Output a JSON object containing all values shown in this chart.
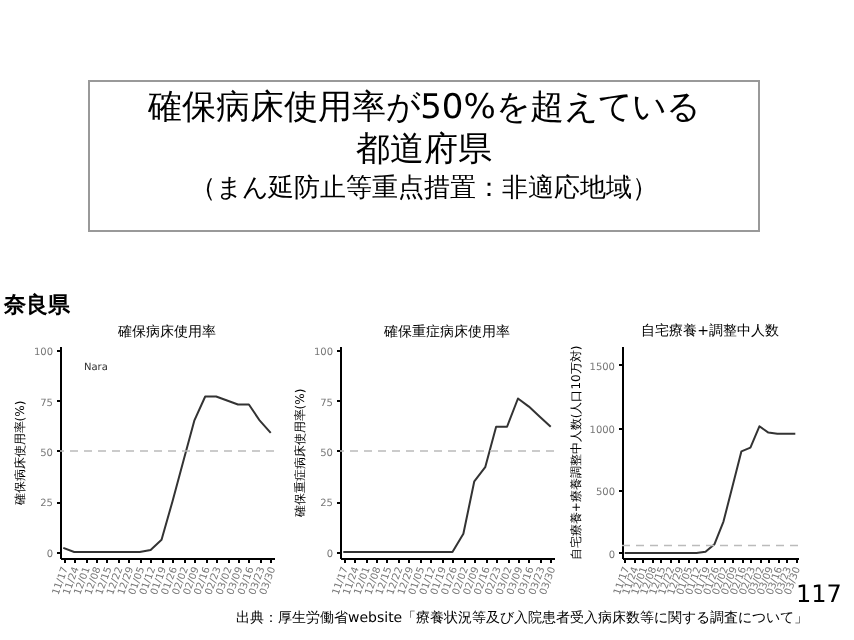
{
  "chart_data": [
    {
      "type": "line",
      "title": "確保病床使用率",
      "ylabel": "確保病床使用率(%)",
      "categories": [
        "11/17",
        "11/24",
        "12/01",
        "12/08",
        "12/15",
        "12/22",
        "12/29",
        "01/05",
        "01/12",
        "01/19",
        "01/26",
        "02/02",
        "02/09",
        "02/16",
        "02/23",
        "03/02",
        "03/09",
        "03/16",
        "03/23",
        "03/30"
      ],
      "series": [
        {
          "color": "#333333",
          "values": [
            2,
            0,
            0,
            0,
            0,
            0,
            0,
            0,
            1,
            6,
            25,
            45,
            65,
            77,
            77,
            75,
            73,
            73,
            65,
            59
          ]
        }
      ],
      "ylim": [
        -3,
        102
      ],
      "yticks": [
        0,
        25,
        50,
        75,
        100
      ],
      "grid": false,
      "marker": "none",
      "line_style": "solid",
      "ref_lines": [
        {
          "axis": "y",
          "value": 50,
          "color": "#bbbbbb",
          "line_style": "dashed"
        }
      ],
      "annotations": [
        "確保病床使用率が50%を超えている都道府県",
        "（まん延防止等重点措置：非適応地域）",
        "奈良県",
        "Nara"
      ]
    },
    {
      "type": "line",
      "title": "確保重症病床使用率",
      "ylabel": "確保重症病床使用率(%)",
      "categories": [
        "11/17",
        "11/24",
        "12/01",
        "12/08",
        "12/15",
        "12/22",
        "12/29",
        "01/05",
        "01/12",
        "01/19",
        "01/26",
        "02/02",
        "02/09",
        "02/16",
        "02/23",
        "03/02",
        "03/09",
        "03/16",
        "03/23",
        "03/30"
      ],
      "series": [
        {
          "color": "#333333",
          "values": [
            0,
            0,
            0,
            0,
            0,
            0,
            0,
            0,
            0,
            0,
            0,
            9,
            35,
            42,
            62,
            62,
            76,
            72,
            67,
            62
          ]
        }
      ],
      "ylim": [
        -3,
        102
      ],
      "yticks": [
        0,
        25,
        50,
        75,
        100
      ],
      "grid": false,
      "marker": "none",
      "line_style": "solid",
      "ref_lines": [
        {
          "axis": "y",
          "value": 50,
          "color": "#bbbbbb",
          "line_style": "dashed"
        }
      ]
    },
    {
      "type": "line",
      "title": "自宅療養+調整中人数",
      "ylabel": "自宅療養+療養調整中人数(人口10万対)",
      "categories": [
        "11/17",
        "11/24",
        "12/01",
        "12/08",
        "12/15",
        "12/22",
        "12/29",
        "01/05",
        "01/12",
        "01/19",
        "01/26",
        "02/02",
        "02/09",
        "02/16",
        "02/23",
        "03/02",
        "03/09",
        "03/16",
        "03/23",
        "03/30"
      ],
      "series": [
        {
          "color": "#333333",
          "values": [
            0,
            0,
            0,
            0,
            0,
            0,
            0,
            0,
            0,
            10,
            70,
            250,
            530,
            810,
            840,
            1010,
            960,
            950,
            950,
            950
          ]
        }
      ],
      "ylim": [
        -40,
        1650
      ],
      "yticks": [
        0,
        500,
        1000,
        1500
      ],
      "grid": false,
      "marker": "none",
      "line_style": "solid",
      "ref_lines": [
        {
          "axis": "y",
          "value": 60,
          "color": "#bbbbbb",
          "line_style": "dashed"
        }
      ],
      "annotations": [
        "出典：厚生労働省website「療養状況等及び入院患者受入病床数等に関する調査について」",
        "117"
      ]
    }
  ]
}
